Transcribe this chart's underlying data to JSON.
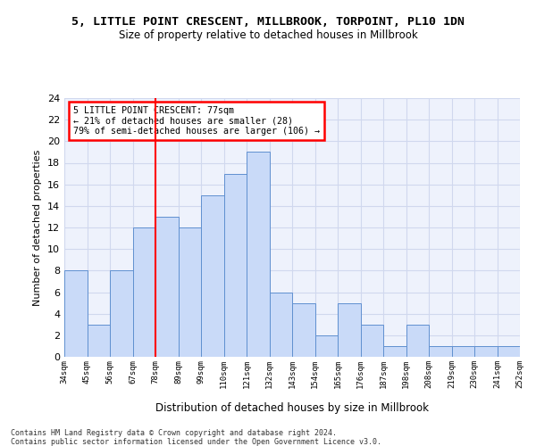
{
  "title1": "5, LITTLE POINT CRESCENT, MILLBROOK, TORPOINT, PL10 1DN",
  "title2": "Size of property relative to detached houses in Millbrook",
  "xlabel": "Distribution of detached houses by size in Millbrook",
  "ylabel": "Number of detached properties",
  "bar_values": [
    8,
    3,
    8,
    12,
    13,
    12,
    15,
    17,
    19,
    6,
    5,
    2,
    5,
    3,
    1,
    3,
    1,
    1,
    1,
    1
  ],
  "bin_labels": [
    "34sqm",
    "45sqm",
    "56sqm",
    "67sqm",
    "78sqm",
    "89sqm",
    "99sqm",
    "110sqm",
    "121sqm",
    "132sqm",
    "143sqm",
    "154sqm",
    "165sqm",
    "176sqm",
    "187sqm",
    "198sqm",
    "208sqm",
    "219sqm",
    "230sqm",
    "241sqm",
    "252sqm"
  ],
  "bar_color": "#c9daf8",
  "bar_edgecolor": "#6090d0",
  "grid_color": "#d0d8ee",
  "bg_color": "#eef2fc",
  "red_line_x": 3.5,
  "annotation_text": "5 LITTLE POINT CRESCENT: 77sqm\n← 21% of detached houses are smaller (28)\n79% of semi-detached houses are larger (106) →",
  "annotation_box_color": "white",
  "annotation_box_edgecolor": "red",
  "ylim": [
    0,
    24
  ],
  "yticks": [
    0,
    2,
    4,
    6,
    8,
    10,
    12,
    14,
    16,
    18,
    20,
    22,
    24
  ],
  "footer1": "Contains HM Land Registry data © Crown copyright and database right 2024.",
  "footer2": "Contains public sector information licensed under the Open Government Licence v3.0."
}
